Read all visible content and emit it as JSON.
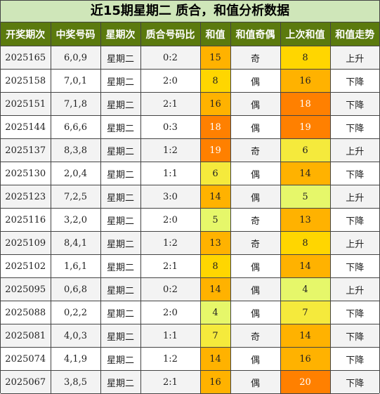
{
  "title": "近15期星期二 质合，和值分析数据",
  "headers": [
    "开奖期次",
    "中奖号码",
    "星期次",
    "质合号码比",
    "和值",
    "和值奇偶",
    "上次和值",
    "和值走势"
  ],
  "colors": {
    "header_bg": "#5b7a0e",
    "title_bg": "#cfe6b9",
    "row_odd": "#f3f3f3",
    "row_even": "#ffffff",
    "sum_4_5": "#e6f76a",
    "sum_6_7": "#f5ea3c",
    "sum_8": "#ffd600",
    "sum_13_16": "#ffb200",
    "sum_18_20": "#ff8000"
  },
  "rows": [
    {
      "period": "2025165",
      "numbers": "6,0,9",
      "weekday": "星期二",
      "ratio": "0:2",
      "sum": "15",
      "parity": "奇",
      "prev_sum": "8",
      "trend": "上升"
    },
    {
      "period": "2025158",
      "numbers": "7,0,1",
      "weekday": "星期二",
      "ratio": "2:0",
      "sum": "8",
      "parity": "偶",
      "prev_sum": "16",
      "trend": "下降"
    },
    {
      "period": "2025151",
      "numbers": "7,1,8",
      "weekday": "星期二",
      "ratio": "2:1",
      "sum": "16",
      "parity": "偶",
      "prev_sum": "18",
      "trend": "下降"
    },
    {
      "period": "2025144",
      "numbers": "6,6,6",
      "weekday": "星期二",
      "ratio": "0:3",
      "sum": "18",
      "parity": "偶",
      "prev_sum": "19",
      "trend": "下降"
    },
    {
      "period": "2025137",
      "numbers": "8,3,8",
      "weekday": "星期二",
      "ratio": "1:2",
      "sum": "19",
      "parity": "奇",
      "prev_sum": "6",
      "trend": "上升"
    },
    {
      "period": "2025130",
      "numbers": "2,0,4",
      "weekday": "星期二",
      "ratio": "1:1",
      "sum": "6",
      "parity": "偶",
      "prev_sum": "14",
      "trend": "下降"
    },
    {
      "period": "2025123",
      "numbers": "7,2,5",
      "weekday": "星期二",
      "ratio": "3:0",
      "sum": "14",
      "parity": "偶",
      "prev_sum": "5",
      "trend": "上升"
    },
    {
      "period": "2025116",
      "numbers": "3,2,0",
      "weekday": "星期二",
      "ratio": "2:0",
      "sum": "5",
      "parity": "奇",
      "prev_sum": "13",
      "trend": "下降"
    },
    {
      "period": "2025109",
      "numbers": "8,4,1",
      "weekday": "星期二",
      "ratio": "1:2",
      "sum": "13",
      "parity": "奇",
      "prev_sum": "8",
      "trend": "上升"
    },
    {
      "period": "2025102",
      "numbers": "1,6,1",
      "weekday": "星期二",
      "ratio": "2:1",
      "sum": "8",
      "parity": "偶",
      "prev_sum": "14",
      "trend": "下降"
    },
    {
      "period": "2025095",
      "numbers": "0,6,8",
      "weekday": "星期二",
      "ratio": "0:2",
      "sum": "14",
      "parity": "偶",
      "prev_sum": "4",
      "trend": "上升"
    },
    {
      "period": "2025088",
      "numbers": "0,2,2",
      "weekday": "星期二",
      "ratio": "2:0",
      "sum": "4",
      "parity": "偶",
      "prev_sum": "7",
      "trend": "下降"
    },
    {
      "period": "2025081",
      "numbers": "4,0,3",
      "weekday": "星期二",
      "ratio": "1:1",
      "sum": "7",
      "parity": "奇",
      "prev_sum": "14",
      "trend": "下降"
    },
    {
      "period": "2025074",
      "numbers": "4,1,9",
      "weekday": "星期二",
      "ratio": "1:2",
      "sum": "14",
      "parity": "偶",
      "prev_sum": "16",
      "trend": "下降"
    },
    {
      "period": "2025067",
      "numbers": "3,8,5",
      "weekday": "星期二",
      "ratio": "2:1",
      "sum": "16",
      "parity": "偶",
      "prev_sum": "20",
      "trend": "下降"
    }
  ]
}
